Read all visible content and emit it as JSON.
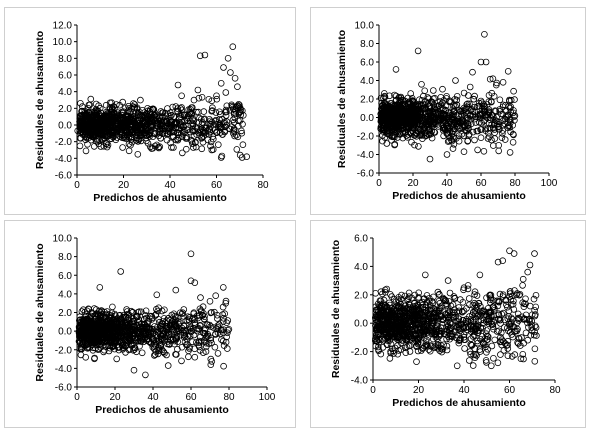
{
  "chart_data": [
    {
      "type": "scatter",
      "xlabel": "Predichos de ahusamiento",
      "ylabel": "Residuales de ahusamiento",
      "xlim": [
        0,
        80
      ],
      "ylim": [
        -6,
        12
      ],
      "xticks": [
        "0",
        "20",
        "40",
        "60",
        "80"
      ],
      "yticks": [
        "-6.0",
        "-4.0",
        "-2.0",
        "0.0",
        "2.0",
        "4.0",
        "6.0",
        "8.0",
        "10.0",
        "12.0"
      ],
      "series": [
        {
          "values": [
            [
              53,
              8.3
            ],
            [
              55,
              8.4
            ],
            [
              63,
              6.9
            ],
            [
              65,
              8.0
            ],
            [
              67,
              9.4
            ],
            [
              66,
              6.3
            ],
            [
              68,
              5.6
            ],
            [
              69,
              4.6
            ],
            [
              62,
              5.0
            ],
            [
              60,
              3.5
            ],
            [
              64,
              3.9
            ],
            [
              58,
              2.9
            ],
            [
              71,
              -3.9
            ],
            [
              73,
              -3.8
            ],
            [
              62,
              -3.9
            ],
            [
              58,
              -3.0
            ],
            [
              47,
              -2.9
            ],
            [
              52,
              4.2
            ],
            [
              45,
              3.5
            ]
          ]
        }
      ]
    },
    {
      "type": "scatter",
      "xlabel": "Predichos de ahusamiento",
      "ylabel": "Residuales de ahusamiento",
      "xlim": [
        0,
        100
      ],
      "ylim": [
        -6,
        10
      ],
      "xticks": [
        "0",
        "20",
        "40",
        "60",
        "80",
        "100"
      ],
      "yticks": [
        "-6.0",
        "-4.0",
        "-2.0",
        "0.0",
        "2.0",
        "4.0",
        "6.0",
        "8.0",
        "10.0"
      ],
      "series": [
        {
          "values": [
            [
              62,
              9.0
            ],
            [
              23,
              7.2
            ],
            [
              60,
              6.0
            ],
            [
              63,
              6.0
            ],
            [
              76,
              5.0
            ],
            [
              73,
              3.8
            ],
            [
              69,
              3.5
            ],
            [
              67,
              4.2
            ],
            [
              55,
              4.9
            ],
            [
              45,
              4.0
            ],
            [
              10,
              5.2
            ],
            [
              50,
              -3.7
            ],
            [
              30,
              -4.5
            ],
            [
              40,
              -4.0
            ],
            [
              58,
              -3.5
            ],
            [
              64,
              -1.2
            ]
          ]
        }
      ]
    },
    {
      "type": "scatter",
      "xlabel": "Predichos de ahusamiento",
      "ylabel": "Residuales de ahusamiento",
      "xlim": [
        0,
        100
      ],
      "ylim": [
        -6,
        10
      ],
      "xticks": [
        "0",
        "20",
        "40",
        "60",
        "80",
        "100"
      ],
      "yticks": [
        "-6.0",
        "-4.0",
        "-2.0",
        "0.0",
        "2.0",
        "4.0",
        "6.0",
        "8.0",
        "10.0"
      ],
      "series": [
        {
          "values": [
            [
              60,
              8.3
            ],
            [
              23,
              6.4
            ],
            [
              60,
              5.4
            ],
            [
              62,
              5.2
            ],
            [
              77,
              4.7
            ],
            [
              73,
              3.8
            ],
            [
              70,
              3.2
            ],
            [
              65,
              3.6
            ],
            [
              52,
              4.4
            ],
            [
              42,
              3.9
            ],
            [
              12,
              4.7
            ],
            [
              30,
              -4.2
            ],
            [
              36,
              -4.7
            ],
            [
              48,
              -3.7
            ],
            [
              62,
              -2.8
            ],
            [
              55,
              -3.2
            ]
          ]
        }
      ]
    },
    {
      "type": "scatter",
      "xlabel": "Predichos de ahusamiento",
      "ylabel": "Residuales de ahusamiento",
      "xlim": [
        0,
        80
      ],
      "ylim": [
        -4,
        6
      ],
      "xticks": [
        "0",
        "20",
        "40",
        "60",
        "80"
      ],
      "yticks": [
        "-4.0",
        "-2.0",
        "0.0",
        "2.0",
        "4.0",
        "6.0"
      ],
      "series": [
        {
          "values": [
            [
              60,
              5.1
            ],
            [
              57,
              4.4
            ],
            [
              55,
              4.3
            ],
            [
              62,
              4.9
            ],
            [
              71,
              4.9
            ],
            [
              69,
              4.1
            ],
            [
              68,
              3.6
            ],
            [
              66,
              3.1
            ],
            [
              47,
              3.4
            ],
            [
              33,
              3.0
            ],
            [
              23,
              3.4
            ],
            [
              40,
              2.5
            ],
            [
              52,
              -3.0
            ],
            [
              45,
              -2.2
            ],
            [
              37,
              -3.0
            ],
            [
              65,
              -2.5
            ],
            [
              68,
              -1.2
            ]
          ]
        }
      ]
    }
  ]
}
